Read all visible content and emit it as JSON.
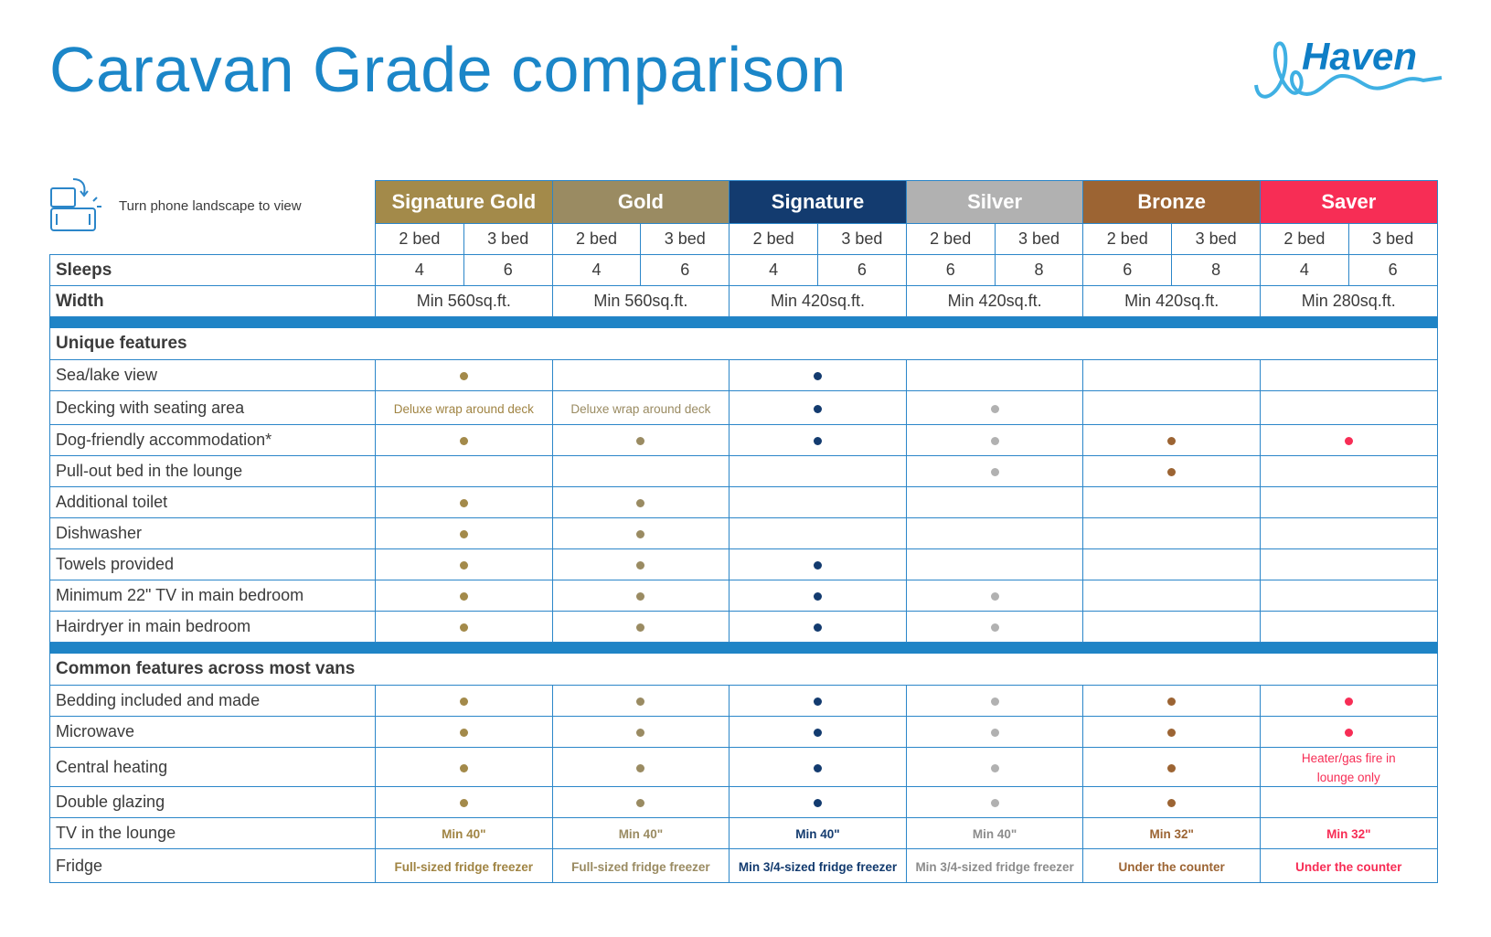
{
  "title": "Caravan Grade comparison",
  "logo": {
    "text": "Haven"
  },
  "hint": {
    "text": "Turn phone landscape to view",
    "icon": "phone-rotate-icon"
  },
  "grades": [
    {
      "name": "Signature Gold",
      "color": "#a38a4a",
      "text_color": "#a08443"
    },
    {
      "name": "Gold",
      "color": "#9a8b62",
      "text_color": "#9a8b62"
    },
    {
      "name": "Signature",
      "color": "#133b6f",
      "text_color": "#133b6f"
    },
    {
      "name": "Silver",
      "color": "#b1b1b1",
      "text_color": "#8c8c8c"
    },
    {
      "name": "Bronze",
      "color": "#9c6433",
      "text_color": "#9c6433"
    },
    {
      "name": "Saver",
      "color": "#f72d55",
      "text_color": "#f72d55"
    }
  ],
  "bed_labels": [
    "2 bed",
    "3 bed",
    "2 bed",
    "3 bed",
    "2 bed",
    "3 bed",
    "2 bed",
    "3 bed",
    "2 bed",
    "3 bed",
    "2 bed",
    "3 bed"
  ],
  "sleeps": {
    "label": "Sleeps",
    "values": [
      "4",
      "6",
      "4",
      "6",
      "4",
      "6",
      "6",
      "8",
      "6",
      "8",
      "4",
      "6"
    ]
  },
  "width": {
    "label": "Width",
    "values": [
      "Min 560sq.ft.",
      "Min 560sq.ft.",
      "Min 420sq.ft.",
      "Min 420sq.ft.",
      "Min 420sq.ft.",
      "Min 280sq.ft."
    ]
  },
  "sections": [
    {
      "title": "Unique features",
      "rows": [
        {
          "label": "Sea/lake view",
          "cells": [
            "dot",
            "",
            "dot",
            "",
            "",
            ""
          ]
        },
        {
          "label": "Decking with seating area",
          "cells": [
            "Deluxe wrap around deck",
            "Deluxe wrap around deck",
            "dot",
            "dot",
            "",
            ""
          ]
        },
        {
          "label": "Dog-friendly accommodation*",
          "cells": [
            "dot",
            "dot",
            "dot",
            "dot",
            "dot",
            "dot"
          ]
        },
        {
          "label": "Pull-out bed in the lounge",
          "cells": [
            "",
            "",
            "",
            "dot",
            "dot",
            ""
          ]
        },
        {
          "label": "Additional toilet",
          "cells": [
            "dot",
            "dot",
            "",
            "",
            "",
            ""
          ]
        },
        {
          "label": "Dishwasher",
          "cells": [
            "dot",
            "dot",
            "",
            "",
            "",
            ""
          ]
        },
        {
          "label": "Towels provided",
          "cells": [
            "dot",
            "dot",
            "dot",
            "",
            "",
            ""
          ]
        },
        {
          "label": "Minimum 22\" TV in main bedroom",
          "cells": [
            "dot",
            "dot",
            "dot",
            "dot",
            "",
            ""
          ]
        },
        {
          "label": "Hairdryer in main bedroom",
          "cells": [
            "dot",
            "dot",
            "dot",
            "dot",
            "",
            ""
          ]
        }
      ]
    },
    {
      "title": "Common features across most vans",
      "rows": [
        {
          "label": "Bedding included and made",
          "cells": [
            "dot",
            "dot",
            "dot",
            "dot",
            "dot",
            "dot"
          ]
        },
        {
          "label": "Microwave",
          "cells": [
            "dot",
            "dot",
            "dot",
            "dot",
            "dot",
            "dot"
          ]
        },
        {
          "label": "Central heating",
          "cells": [
            "dot",
            "dot",
            "dot",
            "dot",
            "dot",
            "Heater/gas fire in lounge only"
          ]
        },
        {
          "label": "Double glazing",
          "cells": [
            "dot",
            "dot",
            "dot",
            "dot",
            "dot",
            ""
          ]
        },
        {
          "label": "TV in the lounge",
          "cells": [
            "Min 40\"",
            "Min 40\"",
            "Min 40\"",
            "Min 40\"",
            "Min 32\"",
            "Min 32\""
          ]
        },
        {
          "label": "Fridge",
          "cells": [
            "Full-sized fridge freezer",
            "Full-sized fridge freezer",
            "Min 3/4-sized fridge freezer",
            "Min 3/4-sized fridge freezer",
            "Under the counter",
            "Under the counter"
          ]
        }
      ]
    }
  ]
}
